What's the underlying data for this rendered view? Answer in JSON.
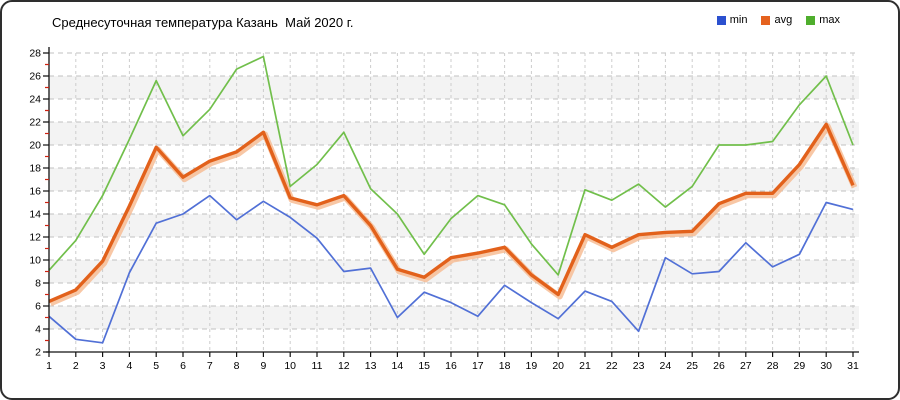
{
  "header": {
    "title": "Среднесуточная температура Казань  Май 2020 г."
  },
  "legend": {
    "items": [
      {
        "label": "min",
        "color": "#2b50cf"
      },
      {
        "label": "avg",
        "color": "#e5621f"
      },
      {
        "label": "max",
        "color": "#4fae2d"
      }
    ]
  },
  "chart_data": {
    "type": "line",
    "title": "Среднесуточная температура Казань  Май 2020 г.",
    "xlabel": "",
    "ylabel": "",
    "x": [
      1,
      2,
      3,
      4,
      5,
      6,
      7,
      8,
      9,
      10,
      11,
      12,
      13,
      14,
      15,
      16,
      17,
      18,
      19,
      20,
      21,
      22,
      23,
      24,
      25,
      26,
      27,
      28,
      29,
      30,
      31
    ],
    "x_tick_labels": [
      "1",
      "2",
      "3",
      "4",
      "5",
      "6",
      "7",
      "8",
      "9",
      "10",
      "11",
      "12",
      "13",
      "14",
      "15",
      "16",
      "17",
      "18",
      "19",
      "20",
      "21",
      "22",
      "23",
      "24",
      "25",
      "26",
      "27",
      "28",
      "29",
      "30",
      "31"
    ],
    "y_tick_labels": [
      "2",
      "4",
      "6",
      "8",
      "10",
      "12",
      "14",
      "16",
      "18",
      "20",
      "22",
      "24",
      "26",
      "28"
    ],
    "ylim": [
      2,
      28
    ],
    "ytick_step": 2,
    "grid": "dashed",
    "legend_position": "top-right",
    "series": [
      {
        "name": "min",
        "line_color": "#5170d6",
        "values": [
          5.1,
          3.1,
          2.8,
          8.9,
          13.2,
          14.0,
          15.6,
          13.5,
          15.1,
          13.7,
          11.9,
          9.0,
          9.3,
          5.0,
          7.2,
          6.3,
          5.1,
          7.8,
          6.3,
          4.9,
          7.3,
          6.4,
          3.8,
          10.2,
          8.8,
          9.0,
          11.5,
          9.4,
          10.5,
          15.0,
          14.4
        ]
      },
      {
        "name": "avg",
        "line_color": "#e2611b",
        "halo_color": "#f6b98f",
        "values": [
          6.4,
          7.4,
          9.9,
          14.7,
          19.8,
          17.2,
          18.6,
          19.4,
          21.1,
          15.4,
          14.8,
          15.6,
          13.0,
          9.2,
          8.5,
          10.2,
          10.6,
          11.1,
          8.7,
          7.0,
          12.2,
          11.1,
          12.2,
          12.4,
          12.5,
          14.9,
          15.8,
          15.8,
          18.3,
          21.8,
          16.5
        ]
      },
      {
        "name": "max",
        "line_color": "#71bf4b",
        "values": [
          9.1,
          11.7,
          15.6,
          20.5,
          25.6,
          20.8,
          23.1,
          26.6,
          27.7,
          16.4,
          18.3,
          21.1,
          16.2,
          14.0,
          10.5,
          13.6,
          15.6,
          14.8,
          11.4,
          8.7,
          16.1,
          15.2,
          16.6,
          14.6,
          16.4,
          20.0,
          20.0,
          20.3,
          23.5,
          26.0,
          20.0
        ]
      }
    ],
    "styling": {
      "band_fill": "#f3f3f3",
      "h_grid_color": "#c2c2c2",
      "v_grid_color": "#cccccc",
      "axis_color": "#111111",
      "minor_tick_color": "#cc2211",
      "tick_label_color": "#000000"
    }
  }
}
